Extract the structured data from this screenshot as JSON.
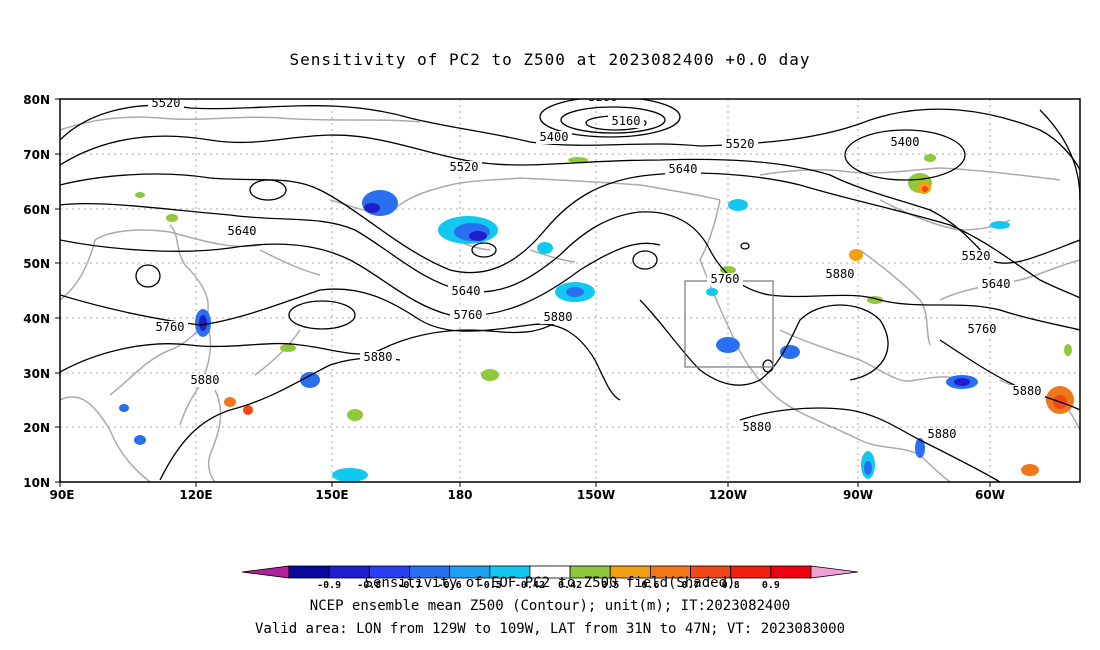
{
  "title": "Sensitivity of PC2 to Z500 at 2023082400 +0.0 day",
  "lat_labels": [
    "80N",
    "70N",
    "60N",
    "50N",
    "40N",
    "30N",
    "20N",
    "10N"
  ],
  "lon_labels": [
    "90E",
    "120E",
    "150E",
    "180",
    "150W",
    "120W",
    "90W",
    "60W"
  ],
  "contour_labels": [
    "5160",
    "5280",
    "5400",
    "5400",
    "5520",
    "5520",
    "5520",
    "5520",
    "5640",
    "5640",
    "5640",
    "5640",
    "5760",
    "5760",
    "5760",
    "5760",
    "5880",
    "5880",
    "5880",
    "5880",
    "5880",
    "5880",
    "5880"
  ],
  "colorbar": {
    "ticks": [
      "-0.9",
      "-0.8",
      "-0.7",
      "-0.6",
      "-0.5",
      "-0.42",
      "0.42",
      "0.5",
      "0.6",
      "0.7",
      "0.8",
      "0.9"
    ],
    "colors": [
      "#b0209a",
      "#0a0a9a",
      "#1e1ecc",
      "#2840f0",
      "#2870f0",
      "#1ea0f0",
      "#10c8f0",
      "#ffffff",
      "#90c83c",
      "#f0a010",
      "#f07818",
      "#f04818",
      "#f02010",
      "#f00010",
      "#f0a0d8"
    ]
  },
  "footer": {
    "line1": "Sensitivity of EOF PC2 to Z500 field(Shaded)",
    "line2": "NCEP ensemble mean Z500 (Contour); unit(m); IT:2023082400",
    "line3": "Valid area: LON from 129W to 109W, LAT from 31N to 47N; VT: 2023083000"
  }
}
